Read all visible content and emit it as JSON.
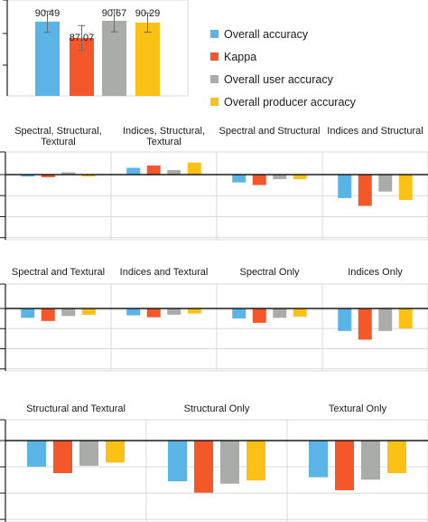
{
  "colors": {
    "overall_accuracy": "#5ab4e6",
    "kappa": "#f4582a",
    "overall_user_accuracy": "#a9aca8",
    "overall_producer_accuracy": "#fcc116",
    "grid": "#d9d9d9",
    "axis": "#1a1a1a",
    "error_bar": "#6b6b6b"
  },
  "chart_data": [
    {
      "type": "bar",
      "id": "baseline",
      "categories": [
        "Overall accuracy",
        "Kappa",
        "Overall user accuracy",
        "Overall producer accuracy"
      ],
      "values": [
        90.49,
        87.07,
        90.67,
        90.29
      ],
      "value_labels": [
        "90.49",
        "87.07",
        "90.67",
        "90.29"
      ],
      "errors": [
        2.2,
        2.6,
        2.3,
        2.0
      ],
      "ylim": [
        75,
        95
      ],
      "legend": {
        "placement": "right",
        "entries": [
          "Overall accuracy",
          "Kappa",
          "Overall user accuracy",
          "Overall producer accuracy"
        ]
      }
    },
    {
      "type": "bar",
      "id": "differences",
      "series_names": [
        "Overall accuracy",
        "Kappa",
        "Overall user accuracy",
        "Overall producer accuracy"
      ],
      "ylim": [
        -10,
        3
      ],
      "rows": [
        {
          "panels": [
            {
              "title": [
                "Spectral, Structural,",
                "Textural"
              ],
              "values": [
                -0.3,
                -0.4,
                0.3,
                -0.3
              ]
            },
            {
              "title": [
                "Indices, Structural,",
                "Textural"
              ],
              "values": [
                0.9,
                1.2,
                0.6,
                1.6
              ]
            },
            {
              "title": [
                "Spectral and Structural"
              ],
              "values": [
                -1.2,
                -1.6,
                -0.7,
                -0.7
              ]
            },
            {
              "title": [
                "Indices and Structural"
              ],
              "values": [
                -3.6,
                -4.8,
                -2.6,
                -3.9
              ]
            }
          ]
        },
        {
          "panels": [
            {
              "title": [
                "Spectral and Textural"
              ],
              "values": [
                -1.5,
                -2.0,
                -1.2,
                -1.0
              ]
            },
            {
              "title": [
                "Indices and Textural"
              ],
              "values": [
                -1.1,
                -1.4,
                -1.0,
                -0.8
              ]
            },
            {
              "title": [
                "Spectral Only"
              ],
              "values": [
                -1.6,
                -2.3,
                -1.5,
                -1.3
              ]
            },
            {
              "title": [
                "Indices Only"
              ],
              "values": [
                -3.6,
                -5.0,
                -3.6,
                -3.2
              ]
            }
          ]
        },
        {
          "panels": [
            {
              "title": [
                "Structural and Textural"
              ],
              "values": [
                -3.2,
                -4.0,
                -3.1,
                -2.7
              ]
            },
            {
              "title": [
                "Structural Only"
              ],
              "values": [
                -5.0,
                -6.4,
                -5.3,
                -4.9
              ]
            },
            {
              "title": [
                "Textural Only"
              ],
              "values": [
                -4.5,
                -6.1,
                -4.8,
                -4.0
              ]
            }
          ]
        }
      ]
    }
  ]
}
